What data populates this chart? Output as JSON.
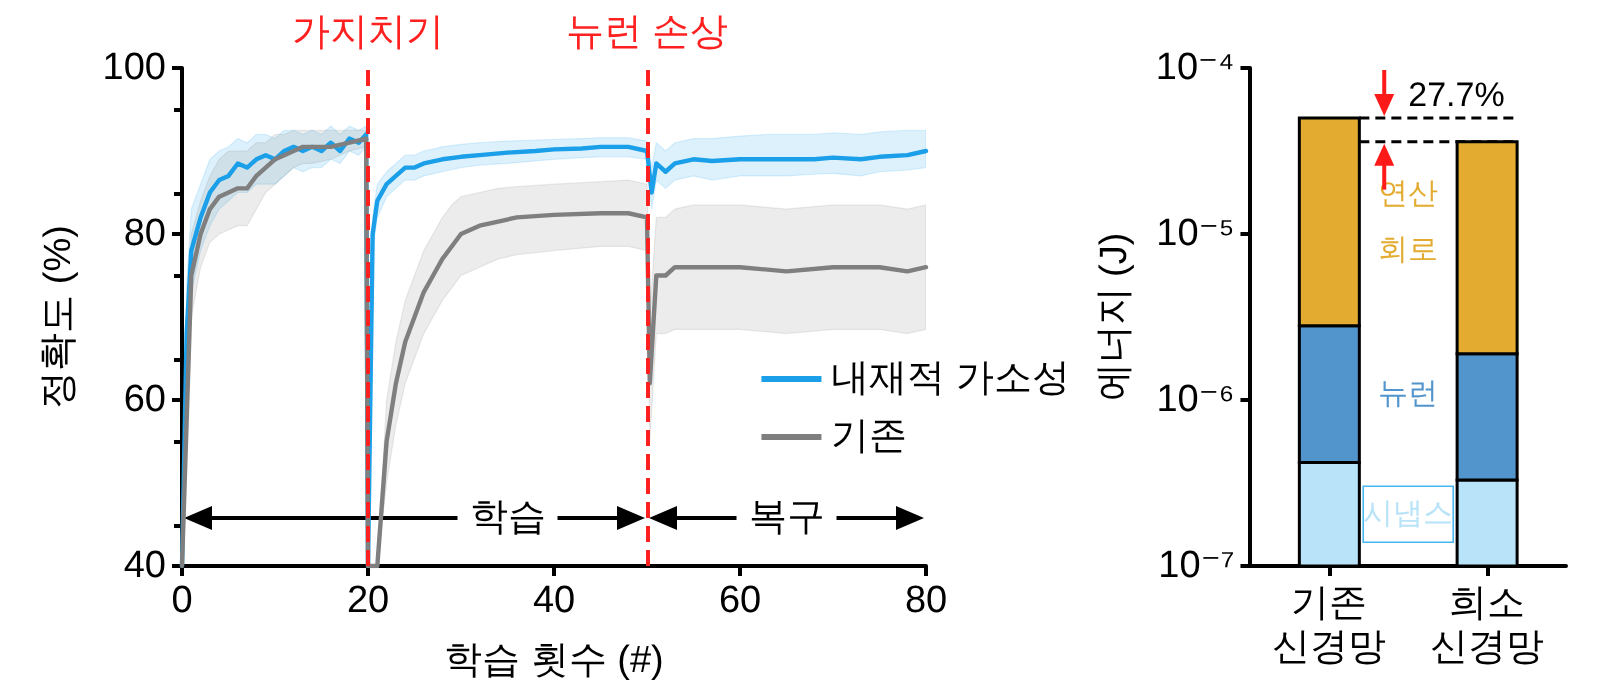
{
  "chart_data": [
    {
      "type": "line",
      "xlabel": "학습 횟수 (#)",
      "ylabel": "정확도 (%)",
      "xlim": [
        0,
        80
      ],
      "xticks": [
        0,
        20,
        40,
        60,
        80
      ],
      "ylim": [
        40,
        100
      ],
      "yticks": [
        40,
        60,
        80,
        100
      ],
      "grid": false,
      "legend": "right",
      "marker": "none",
      "line_style": "solid",
      "ref_lines": [
        {
          "axis": "x",
          "value": 20,
          "label": "가지치기",
          "color": "#ff2020",
          "line_style": "dashed"
        },
        {
          "axis": "x",
          "value": 50,
          "label": "뉴런 손상",
          "color": "#ff2020",
          "line_style": "dashed"
        }
      ],
      "annotations": [
        "학습",
        "복구"
      ],
      "series": [
        {
          "name": "내재적 가소성",
          "color": "#1a9fe8",
          "x": [
            0,
            0.5,
            1,
            2,
            3,
            4,
            5,
            6,
            7,
            8,
            9,
            10,
            11,
            12,
            13,
            14,
            15,
            16,
            17,
            18,
            19,
            19.8,
            20,
            20.5,
            21,
            22,
            23,
            24,
            25,
            26,
            28,
            30,
            32,
            35,
            38,
            40,
            43,
            45,
            48,
            50,
            50.5,
            51,
            52,
            53,
            55,
            57,
            60,
            63,
            65,
            68,
            70,
            73,
            75,
            78,
            80
          ],
          "values": [
            40,
            68,
            78,
            82,
            85,
            86.5,
            87,
            88.5,
            88,
            89,
            89.5,
            89,
            90,
            90.5,
            90,
            90.5,
            90,
            91,
            90,
            91.5,
            91,
            92,
            40,
            80,
            84,
            86,
            87,
            88,
            88,
            88.5,
            89,
            89.3,
            89.5,
            89.8,
            90,
            90.2,
            90.3,
            90.5,
            90.5,
            90,
            85,
            88.5,
            87.5,
            88.5,
            89,
            88.8,
            89,
            89,
            89,
            89,
            89.2,
            89,
            89.3,
            89.5,
            90
          ],
          "lower": [
            40,
            62,
            73,
            78,
            81,
            83,
            84,
            85,
            85,
            86,
            86,
            86,
            87,
            88,
            87.5,
            88,
            88,
            89,
            88.5,
            90,
            89.5,
            90.5,
            40,
            78,
            82,
            84.5,
            85.5,
            86.5,
            86.5,
            87,
            87.5,
            88,
            88.3,
            88.5,
            88.8,
            89,
            89.2,
            89.3,
            89.3,
            89,
            83,
            86.5,
            85.5,
            86.5,
            87,
            86.5,
            87,
            87,
            87,
            87.2,
            87.3,
            87,
            87.5,
            87.7,
            88
          ],
          "upper": [
            40,
            74,
            83,
            86,
            89,
            90,
            90.5,
            91.5,
            91,
            92,
            92,
            91.5,
            92.5,
            92.5,
            92,
            92.5,
            92,
            93,
            92,
            93,
            92.5,
            93,
            40,
            82,
            86,
            87.5,
            88.5,
            89.5,
            89.5,
            90,
            90.5,
            90.8,
            91,
            91.2,
            91.3,
            91.4,
            91.5,
            91.6,
            91.6,
            91.2,
            88,
            91,
            90,
            91,
            91.5,
            91.5,
            91.8,
            92,
            92,
            92,
            92.2,
            92,
            92.3,
            92.5,
            92.5
          ]
        },
        {
          "name": "기존",
          "color": "#7f7f7f",
          "x": [
            0,
            1,
            2,
            3,
            4,
            5,
            6,
            7,
            8,
            9,
            10,
            11,
            12,
            13,
            14,
            16,
            18,
            19.8,
            20,
            21,
            22,
            23,
            24,
            25,
            26,
            27,
            28,
            29,
            30,
            32,
            34,
            36,
            40,
            45,
            48,
            50,
            50.3,
            51,
            52,
            53,
            55,
            60,
            65,
            70,
            75,
            78,
            80
          ],
          "values": [
            40,
            75,
            80,
            83,
            84.5,
            85,
            85.5,
            85.5,
            87,
            88,
            89,
            89.5,
            90,
            90.5,
            90.5,
            90.5,
            91,
            91.5,
            40,
            40,
            55,
            62,
            67,
            70,
            73,
            75,
            77,
            78.5,
            80,
            81,
            81.5,
            82,
            82.3,
            82.5,
            82.5,
            82,
            62,
            75,
            75,
            76,
            76,
            76,
            75.5,
            76,
            76,
            75.5,
            76
          ],
          "lower": [
            40,
            70,
            76,
            79,
            80,
            80.5,
            81,
            81,
            83,
            85,
            86,
            87,
            88,
            88.5,
            88.5,
            89,
            90,
            90.5,
            40,
            40,
            50,
            57,
            62,
            65,
            68,
            70,
            72,
            73.5,
            75,
            76,
            77,
            77.5,
            78,
            78.5,
            78.5,
            78,
            55,
            68,
            68,
            68.5,
            68.5,
            68.5,
            68,
            68.5,
            68.5,
            68,
            68.5
          ],
          "upper": [
            40,
            80,
            84,
            87,
            89,
            90,
            90,
            90,
            91,
            91,
            92,
            92,
            92.5,
            92.5,
            92.5,
            92.5,
            92.5,
            92.5,
            40,
            40,
            60,
            67,
            72,
            75,
            78,
            80,
            82,
            83.5,
            84.5,
            85,
            85.5,
            85.7,
            86,
            86.3,
            86.5,
            86,
            70,
            82,
            82,
            83,
            83.5,
            83.5,
            83,
            83.5,
            83.5,
            83,
            83.5
          ]
        }
      ]
    },
    {
      "type": "bar",
      "stacked": true,
      "log": true,
      "ylabel": "에너지 (J)",
      "categories": [
        "기존 신경망",
        "희소 신경망"
      ],
      "ylim": [
        1e-07,
        0.0001
      ],
      "yticks": [
        {
          "value": 1e-07,
          "label": "10⁻⁷"
        },
        {
          "value": 1e-06,
          "label": "10⁻⁶"
        },
        {
          "value": 1e-05,
          "label": "10⁻⁵"
        },
        {
          "value": 0.0001,
          "label": "10⁻⁴"
        }
      ],
      "grid": false,
      "legend": false,
      "ref_lines": [
        {
          "axis": "y",
          "value": 5e-05,
          "label": null,
          "color": "#000000",
          "line_style": "dashed"
        },
        {
          "axis": "y",
          "value": 3.6e-05,
          "label": null,
          "color": "#000000",
          "line_style": "dashed"
        }
      ],
      "annotations": [
        "27.7%"
      ],
      "series": [
        {
          "name": "시냅스",
          "color": "#b9e3f9",
          "values": [
            4.2e-07,
            3.3e-07
          ]
        },
        {
          "name": "뉴런",
          "color": "#5294cc",
          "values": [
            2.38e-06,
            1.57e-06
          ]
        },
        {
          "name": "연산 회로",
          "color": "#e3ac30",
          "values": [
            4.72e-05,
            3.41e-05
          ]
        }
      ]
    }
  ]
}
